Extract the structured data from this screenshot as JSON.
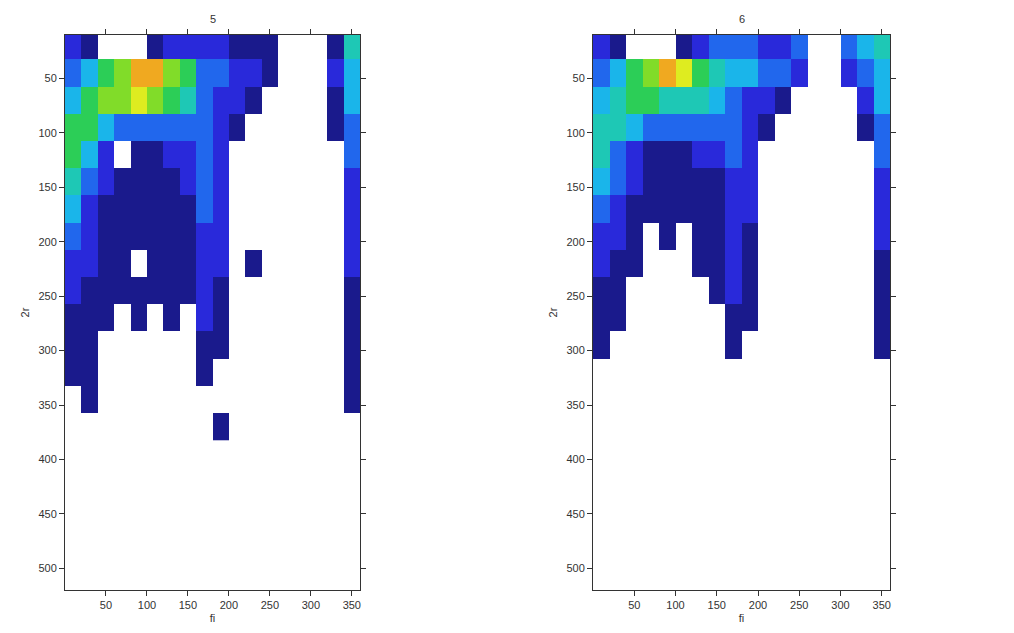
{
  "chart_data": [
    {
      "type": "heatmap",
      "title": "5",
      "x_label": "fi",
      "y_label": "2r",
      "x": [
        10,
        30,
        50,
        70,
        90,
        110,
        130,
        150,
        170,
        190,
        210,
        230,
        250,
        270,
        290,
        310,
        330,
        350
      ],
      "y": [
        20,
        45,
        70,
        95,
        120,
        145,
        170,
        195,
        220,
        245,
        270,
        295,
        320,
        345,
        370
      ],
      "cells": [
        [
          2,
          1,
          null,
          null,
          null,
          1,
          2,
          2,
          2,
          2,
          1,
          1,
          1,
          null,
          null,
          null,
          1,
          5
        ],
        [
          3,
          4,
          6,
          7,
          9,
          9,
          7,
          6,
          3,
          3,
          2,
          2,
          1,
          null,
          null,
          null,
          2,
          4
        ],
        [
          4,
          6,
          7,
          7,
          8,
          7,
          6,
          5,
          3,
          2,
          2,
          1,
          null,
          null,
          null,
          null,
          1,
          4
        ],
        [
          6,
          6,
          4,
          3,
          3,
          3,
          3,
          3,
          3,
          2,
          1,
          null,
          null,
          null,
          null,
          null,
          1,
          3
        ],
        [
          6,
          4,
          2,
          null,
          1,
          1,
          2,
          2,
          3,
          2,
          null,
          null,
          null,
          null,
          null,
          null,
          null,
          3
        ],
        [
          5,
          3,
          2,
          1,
          1,
          1,
          1,
          2,
          3,
          2,
          null,
          null,
          null,
          null,
          null,
          null,
          null,
          2
        ],
        [
          4,
          2,
          1,
          1,
          1,
          1,
          1,
          1,
          3,
          2,
          null,
          null,
          null,
          null,
          null,
          null,
          null,
          2
        ],
        [
          3,
          2,
          1,
          1,
          1,
          1,
          1,
          1,
          2,
          2,
          null,
          null,
          null,
          null,
          null,
          null,
          null,
          2
        ],
        [
          2,
          2,
          1,
          1,
          null,
          1,
          1,
          1,
          2,
          2,
          null,
          1,
          null,
          null,
          null,
          null,
          null,
          2
        ],
        [
          2,
          1,
          1,
          1,
          1,
          1,
          1,
          1,
          2,
          1,
          null,
          null,
          null,
          null,
          null,
          null,
          null,
          1
        ],
        [
          1,
          1,
          1,
          null,
          1,
          null,
          1,
          null,
          2,
          1,
          null,
          null,
          null,
          null,
          null,
          null,
          null,
          1
        ],
        [
          1,
          1,
          null,
          null,
          null,
          null,
          null,
          null,
          1,
          1,
          null,
          null,
          null,
          null,
          null,
          null,
          null,
          1
        ],
        [
          1,
          1,
          null,
          null,
          null,
          null,
          null,
          null,
          1,
          null,
          null,
          null,
          null,
          null,
          null,
          null,
          null,
          1
        ],
        [
          null,
          1,
          null,
          null,
          null,
          null,
          null,
          null,
          null,
          null,
          null,
          null,
          null,
          null,
          null,
          null,
          null,
          1
        ],
        [
          null,
          null,
          null,
          null,
          null,
          null,
          null,
          null,
          null,
          1,
          null,
          null,
          null,
          null,
          null,
          null,
          null,
          null
        ]
      ],
      "zlim": [
        1,
        10
      ],
      "xlim": [
        0,
        360
      ],
      "xticks": [
        50,
        100,
        150,
        200,
        250,
        300,
        350
      ],
      "ylim": [
        520,
        10
      ],
      "yticks": [
        50,
        100,
        150,
        200,
        250,
        300,
        350,
        400,
        450,
        500
      ]
    },
    {
      "type": "heatmap",
      "title": "6",
      "x_label": "fi",
      "y_label": "2r",
      "x": [
        10,
        30,
        50,
        70,
        90,
        110,
        130,
        150,
        170,
        190,
        210,
        230,
        250,
        270,
        290,
        310,
        330,
        350
      ],
      "y": [
        20,
        45,
        70,
        95,
        120,
        145,
        170,
        195,
        220,
        245,
        270,
        295,
        320,
        345,
        370
      ],
      "cells": [
        [
          2,
          1,
          null,
          null,
          null,
          1,
          2,
          3,
          3,
          3,
          2,
          2,
          3,
          null,
          null,
          3,
          4,
          5
        ],
        [
          3,
          4,
          6,
          7,
          9,
          8,
          6,
          5,
          4,
          4,
          3,
          3,
          2,
          null,
          null,
          2,
          3,
          4
        ],
        [
          4,
          5,
          6,
          6,
          5,
          5,
          5,
          4,
          3,
          2,
          2,
          1,
          null,
          null,
          null,
          null,
          2,
          4
        ],
        [
          5,
          5,
          4,
          3,
          3,
          3,
          3,
          3,
          3,
          2,
          1,
          null,
          null,
          null,
          null,
          null,
          1,
          3
        ],
        [
          5,
          3,
          2,
          1,
          1,
          1,
          2,
          2,
          3,
          2,
          null,
          null,
          null,
          null,
          null,
          null,
          null,
          3
        ],
        [
          4,
          3,
          2,
          1,
          1,
          1,
          1,
          1,
          2,
          2,
          null,
          null,
          null,
          null,
          null,
          null,
          null,
          2
        ],
        [
          3,
          2,
          1,
          1,
          1,
          1,
          1,
          1,
          2,
          2,
          null,
          null,
          null,
          null,
          null,
          null,
          null,
          2
        ],
        [
          2,
          2,
          1,
          null,
          1,
          null,
          1,
          1,
          2,
          1,
          null,
          null,
          null,
          null,
          null,
          null,
          null,
          2
        ],
        [
          2,
          1,
          1,
          null,
          null,
          null,
          1,
          1,
          2,
          1,
          null,
          null,
          null,
          null,
          null,
          null,
          null,
          1
        ],
        [
          1,
          1,
          null,
          null,
          null,
          null,
          null,
          1,
          2,
          1,
          null,
          null,
          null,
          null,
          null,
          null,
          null,
          1
        ],
        [
          1,
          1,
          null,
          null,
          null,
          null,
          null,
          null,
          1,
          1,
          null,
          null,
          null,
          null,
          null,
          null,
          null,
          1
        ],
        [
          1,
          null,
          null,
          null,
          null,
          null,
          null,
          null,
          1,
          null,
          null,
          null,
          null,
          null,
          null,
          null,
          null,
          1
        ],
        [
          null,
          null,
          null,
          null,
          null,
          null,
          null,
          null,
          null,
          null,
          null,
          null,
          null,
          null,
          null,
          null,
          null,
          null
        ],
        [
          null,
          null,
          null,
          null,
          null,
          null,
          null,
          null,
          null,
          null,
          null,
          null,
          null,
          null,
          null,
          null,
          null,
          null
        ],
        [
          null,
          null,
          null,
          null,
          null,
          null,
          null,
          null,
          null,
          null,
          null,
          null,
          null,
          null,
          null,
          null,
          null,
          null
        ]
      ],
      "zlim": [
        1,
        10
      ],
      "xlim": [
        0,
        360
      ],
      "xticks": [
        50,
        100,
        150,
        200,
        250,
        300,
        350
      ],
      "ylim": [
        520,
        10
      ],
      "yticks": [
        50,
        100,
        150,
        200,
        250,
        300,
        350,
        400,
        450,
        500
      ]
    }
  ]
}
